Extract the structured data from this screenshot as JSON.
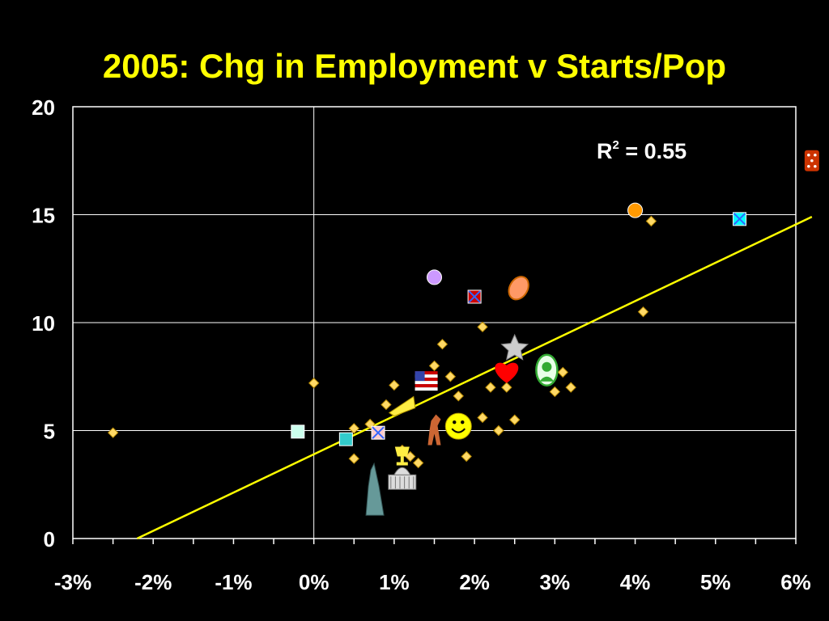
{
  "chart_data": {
    "type": "scatter",
    "title": "2005: Chg in Employment v Starts/Pop",
    "xlabel": "",
    "ylabel": "",
    "xlim": [
      -3,
      6
    ],
    "ylim": [
      0,
      20
    ],
    "x_ticks": [
      -3,
      -2,
      -1,
      0,
      1,
      2,
      3,
      4,
      5,
      6
    ],
    "x_tick_labels": [
      "-3%",
      "-2%",
      "-1%",
      "0%",
      "1%",
      "2%",
      "3%",
      "4%",
      "5%",
      "6%"
    ],
    "y_ticks": [
      0,
      5,
      10,
      15,
      20
    ],
    "y_tick_labels": [
      "0",
      "5",
      "10",
      "15",
      "20"
    ],
    "grid": "horizontal at 5, 10, 15; vertical at 0%",
    "annotation": {
      "r_label": "R",
      "r_sup": "2",
      "r_value": " = 0.55"
    },
    "trendline": {
      "color": "#ffff00",
      "points": [
        [
          -2.2,
          0
        ],
        [
          6.2,
          14.9
        ]
      ]
    },
    "colors": {
      "background": "#000000",
      "title": "#ffff00",
      "text": "#ffffff",
      "marker": "#ffd966"
    },
    "series": [
      {
        "values": [
          [
            -2.5,
            4.9
          ],
          [
            0.0,
            7.2
          ],
          [
            0.5,
            5.1
          ],
          [
            0.5,
            3.7
          ],
          [
            0.7,
            5.3
          ],
          [
            0.9,
            6.2
          ],
          [
            1.0,
            7.1
          ],
          [
            1.1,
            4.1
          ],
          [
            1.2,
            3.8
          ],
          [
            1.3,
            3.5
          ],
          [
            1.5,
            8.0
          ],
          [
            1.6,
            9.0
          ],
          [
            1.7,
            7.5
          ],
          [
            1.8,
            6.6
          ],
          [
            1.9,
            3.8
          ],
          [
            2.1,
            9.8
          ],
          [
            2.2,
            7.0
          ],
          [
            2.3,
            5.0
          ],
          [
            2.4,
            7.0
          ],
          [
            2.5,
            5.5
          ],
          [
            3.0,
            6.8
          ],
          [
            3.1,
            7.7
          ],
          [
            3.2,
            7.0
          ],
          [
            4.1,
            10.5
          ],
          [
            2.1,
            5.6
          ],
          [
            4.2,
            14.7
          ]
        ]
      }
    ],
    "special_points": [
      {
        "x": -0.2,
        "y": 4.95,
        "icon": "square-icon",
        "color": "#ccffee"
      },
      {
        "x": 0.4,
        "y": 4.6,
        "icon": "square-icon",
        "color": "#33cccc"
      },
      {
        "x": 0.8,
        "y": 4.9,
        "icon": "x-square-icon",
        "color": "#ffcccc"
      },
      {
        "x": 1.5,
        "y": 12.1,
        "icon": "circle-icon",
        "color": "#cc99ff"
      },
      {
        "x": 2.0,
        "y": 11.2,
        "icon": "x-square-icon",
        "color": "#cc0000"
      },
      {
        "x": 2.55,
        "y": 11.6,
        "icon": "seashell-icon",
        "color": "#ff9966"
      },
      {
        "x": 4.0,
        "y": 15.2,
        "icon": "circle-icon",
        "color": "#ff9900"
      },
      {
        "x": 5.3,
        "y": 14.8,
        "icon": "x-square-icon",
        "color": "#00ffff"
      },
      {
        "x": 6.2,
        "y": 17.5,
        "icon": "dice-icon",
        "color": "#cc3300"
      },
      {
        "x": 2.5,
        "y": 8.8,
        "icon": "star-icon",
        "color": "#cccccc"
      },
      {
        "x": 2.4,
        "y": 7.8,
        "icon": "heart-icon",
        "color": "#ff0000"
      },
      {
        "x": 2.9,
        "y": 7.8,
        "icon": "washington-icon",
        "color": "#33aa33"
      },
      {
        "x": 1.8,
        "y": 5.2,
        "icon": "smiley-icon",
        "color": "#ffff00"
      },
      {
        "x": 1.5,
        "y": 5.0,
        "icon": "horse-icon",
        "color": "#cc6633"
      },
      {
        "x": 1.4,
        "y": 7.3,
        "icon": "flag-icon",
        "color": "#cc0000"
      },
      {
        "x": 1.1,
        "y": 6.2,
        "icon": "cheese-icon",
        "color": "#ffee44"
      },
      {
        "x": 1.1,
        "y": 3.8,
        "icon": "trophy-icon",
        "color": "#ffee44"
      },
      {
        "x": 1.1,
        "y": 2.8,
        "icon": "capitol-icon",
        "color": "#dddddd"
      },
      {
        "x": 0.75,
        "y": 2.2,
        "icon": "liberty-icon",
        "color": "#669999"
      }
    ]
  }
}
